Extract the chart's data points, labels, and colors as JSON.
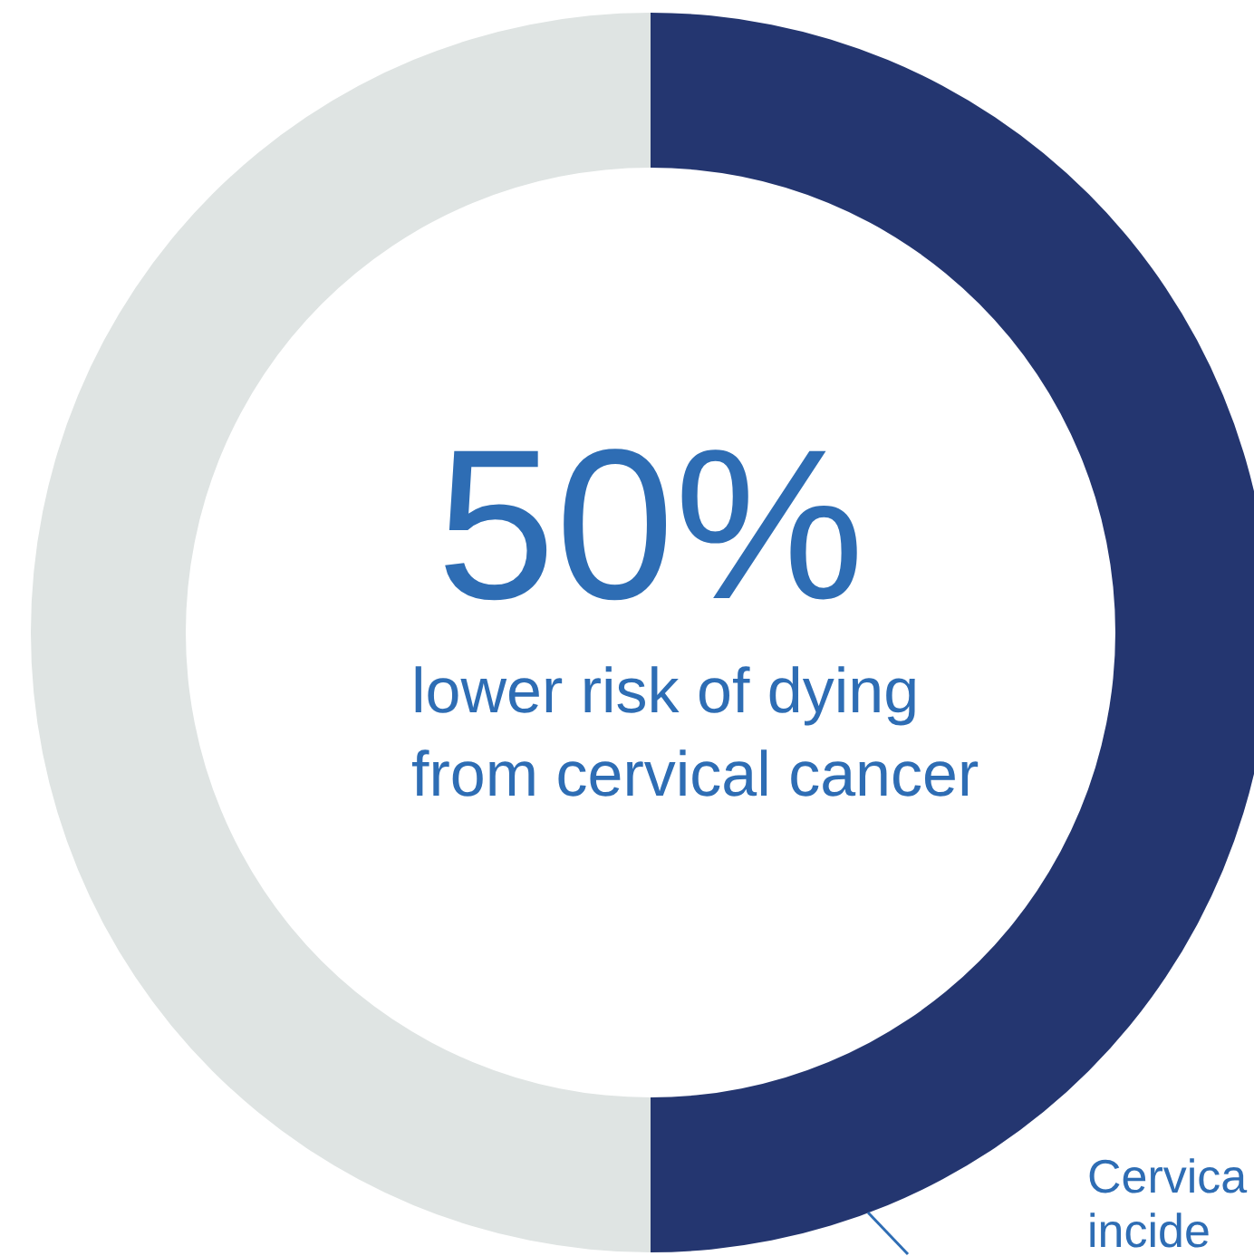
{
  "chart_data": {
    "type": "donut",
    "categories": [
      null,
      null
    ],
    "values": [
      50,
      50
    ],
    "colors": [
      "#243670",
      "#dfe4e3"
    ],
    "annotations": [
      "50%",
      "lower risk of dying",
      "from cervical cancer",
      "Cervica",
      "incide"
    ]
  }
}
